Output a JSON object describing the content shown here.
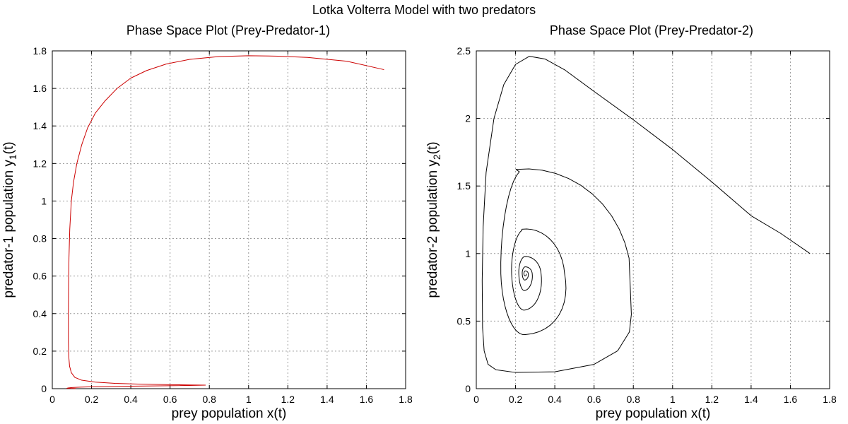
{
  "figure": {
    "title": "Lotka Volterra Model with two predators"
  },
  "chart_data": [
    {
      "type": "line",
      "title": "Phase Space Plot (Prey-Predator-1)",
      "xlabel": "prey population x(t)",
      "ylabel_prefix": "predator-1 population y",
      "ylabel_subscript": "1",
      "ylabel_suffix": "(t)",
      "xlim": [
        0,
        1.8
      ],
      "ylim": [
        0,
        1.8
      ],
      "xticks": [
        "0",
        "0.2",
        "0.4",
        "0.6",
        "0.8",
        "1",
        "1.2",
        "1.4",
        "1.6",
        "1.8"
      ],
      "yticks": [
        "0",
        "0.2",
        "0.4",
        "0.6",
        "0.8",
        "1",
        "1.2",
        "1.4",
        "1.6",
        "1.8"
      ],
      "grid": true,
      "series": [
        {
          "color": "#cc0000",
          "points": [
            [
              1.69,
              1.7
            ],
            [
              1.5,
              1.745
            ],
            [
              1.3,
              1.765
            ],
            [
              1.15,
              1.772
            ],
            [
              1.0,
              1.774
            ],
            [
              0.85,
              1.77
            ],
            [
              0.7,
              1.755
            ],
            [
              0.58,
              1.73
            ],
            [
              0.48,
              1.695
            ],
            [
              0.4,
              1.655
            ],
            [
              0.33,
              1.6
            ],
            [
              0.27,
              1.535
            ],
            [
              0.22,
              1.47
            ],
            [
              0.18,
              1.39
            ],
            [
              0.15,
              1.3
            ],
            [
              0.125,
              1.2
            ],
            [
              0.108,
              1.1
            ],
            [
              0.097,
              1.0
            ],
            [
              0.089,
              0.85
            ],
            [
              0.085,
              0.7
            ],
            [
              0.083,
              0.55
            ],
            [
              0.082,
              0.4
            ],
            [
              0.082,
              0.25
            ],
            [
              0.084,
              0.17
            ],
            [
              0.088,
              0.12
            ],
            [
              0.097,
              0.085
            ],
            [
              0.115,
              0.06
            ],
            [
              0.15,
              0.045
            ],
            [
              0.22,
              0.035
            ],
            [
              0.32,
              0.028
            ],
            [
              0.45,
              0.024
            ],
            [
              0.6,
              0.021
            ],
            [
              0.7,
              0.02
            ],
            [
              0.78,
              0.019
            ],
            [
              0.7,
              0.017
            ],
            [
              0.55,
              0.015
            ],
            [
              0.4,
              0.013
            ],
            [
              0.28,
              0.011
            ],
            [
              0.2,
              0.01
            ],
            [
              0.14,
              0.008
            ],
            [
              0.1,
              0.006
            ],
            [
              0.08,
              0.004
            ],
            [
              0.075,
              0.002
            ],
            [
              0.09,
              0.002
            ],
            [
              0.12,
              0.001
            ]
          ]
        }
      ]
    },
    {
      "type": "line",
      "title": "Phase Space Plot (Prey-Predator-2)",
      "xlabel": "prey population x(t)",
      "ylabel_prefix": "predator-2 population y",
      "ylabel_subscript": "2",
      "ylabel_suffix": "(t)",
      "xlim": [
        0,
        1.8
      ],
      "ylim": [
        0,
        2.5
      ],
      "xticks": [
        "0",
        "0.2",
        "0.4",
        "0.6",
        "0.8",
        "1",
        "1.2",
        "1.4",
        "1.6",
        "1.8"
      ],
      "yticks": [
        "0",
        "0.5",
        "1",
        "1.5",
        "2",
        "2.5"
      ],
      "grid": true,
      "series": [
        {
          "color": "#000000",
          "spiral": {
            "start": [
              1.7,
              1.0
            ],
            "center": [
              0.25,
              0.85
            ],
            "outer_loop": [
              [
                1.7,
                1.0
              ],
              [
                1.55,
                1.15
              ],
              [
                1.4,
                1.28
              ],
              [
                1.2,
                1.53
              ],
              [
                1.0,
                1.77
              ],
              [
                0.8,
                1.99
              ],
              [
                0.6,
                2.2
              ],
              [
                0.45,
                2.36
              ],
              [
                0.35,
                2.44
              ],
              [
                0.27,
                2.46
              ],
              [
                0.2,
                2.4
              ],
              [
                0.14,
                2.25
              ],
              [
                0.09,
                2.0
              ],
              [
                0.05,
                1.6
              ],
              [
                0.035,
                1.2
              ],
              [
                0.03,
                0.8
              ],
              [
                0.032,
                0.45
              ],
              [
                0.04,
                0.28
              ],
              [
                0.06,
                0.18
              ],
              [
                0.1,
                0.14
              ],
              [
                0.2,
                0.12
              ],
              [
                0.4,
                0.125
              ],
              [
                0.6,
                0.18
              ],
              [
                0.72,
                0.28
              ],
              [
                0.78,
                0.42
              ],
              [
                0.79,
                0.55
              ]
            ],
            "loops": [
              {
                "right": 0.79,
                "top": 1.75,
                "left": 0.095,
                "bottom": 0.28
              },
              {
                "right": 0.45,
                "top": 1.24,
                "left": 0.155,
                "bottom": 0.44
              },
              {
                "right": 0.33,
                "top": 1.0,
                "left": 0.205,
                "bottom": 0.63
              },
              {
                "right": 0.285,
                "top": 0.91,
                "left": 0.228,
                "bottom": 0.76
              },
              {
                "right": 0.265,
                "top": 0.875,
                "left": 0.24,
                "bottom": 0.82
              }
            ]
          }
        }
      ]
    }
  ]
}
